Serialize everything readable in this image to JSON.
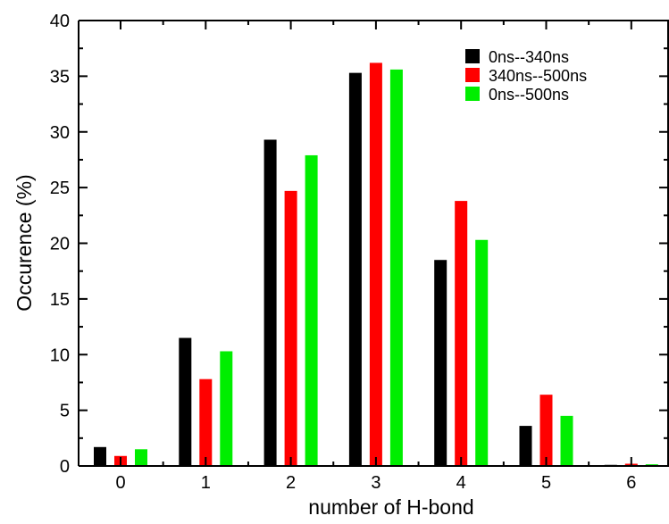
{
  "chart_data": {
    "type": "bar",
    "title": "",
    "xlabel": "number of H-bond",
    "ylabel": "Occurence (%)",
    "categories": [
      "0",
      "1",
      "2",
      "3",
      "4",
      "5",
      "6"
    ],
    "ylim": [
      0,
      40
    ],
    "yticks": [
      "0",
      "5",
      "10",
      "15",
      "20",
      "25",
      "30",
      "35",
      "40"
    ],
    "grid": false,
    "legend_position": "top-right",
    "series": [
      {
        "name": "0ns--340ns",
        "color": "#000000",
        "values": [
          1.7,
          11.5,
          29.3,
          35.3,
          18.5,
          3.6,
          0.1
        ]
      },
      {
        "name": "340ns--500ns",
        "color": "#ff0000",
        "values": [
          0.9,
          7.8,
          24.7,
          36.2,
          23.8,
          6.4,
          0.2
        ]
      },
      {
        "name": "0ns--500ns",
        "color": "#00ee00",
        "values": [
          1.5,
          10.3,
          27.9,
          35.6,
          20.3,
          4.5,
          0.15
        ]
      }
    ]
  }
}
